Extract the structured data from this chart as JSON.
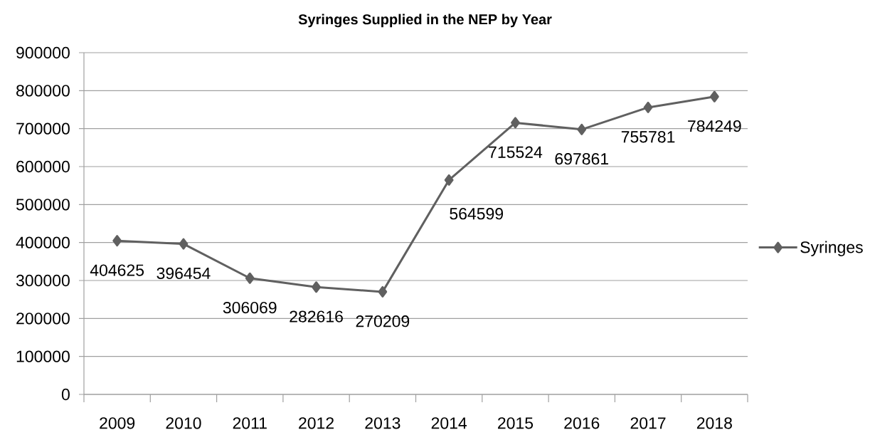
{
  "chart_data": {
    "type": "line",
    "title": "Syringes Supplied in the NEP by Year",
    "categories": [
      "2009",
      "2010",
      "2011",
      "2012",
      "2013",
      "2014",
      "2015",
      "2016",
      "2017",
      "2018"
    ],
    "series": [
      {
        "name": "Syringes",
        "color": "#606060",
        "values": [
          404625,
          396454,
          306069,
          282616,
          270209,
          564599,
          715524,
          697861,
          755781,
          784249
        ]
      }
    ],
    "ylim": [
      0,
      900000
    ],
    "yticks": [
      0,
      100000,
      200000,
      300000,
      400000,
      500000,
      600000,
      700000,
      800000,
      900000
    ],
    "grid": "y",
    "legend": "right",
    "marker": "diamond",
    "line_style": "solid",
    "data_labels": true
  }
}
